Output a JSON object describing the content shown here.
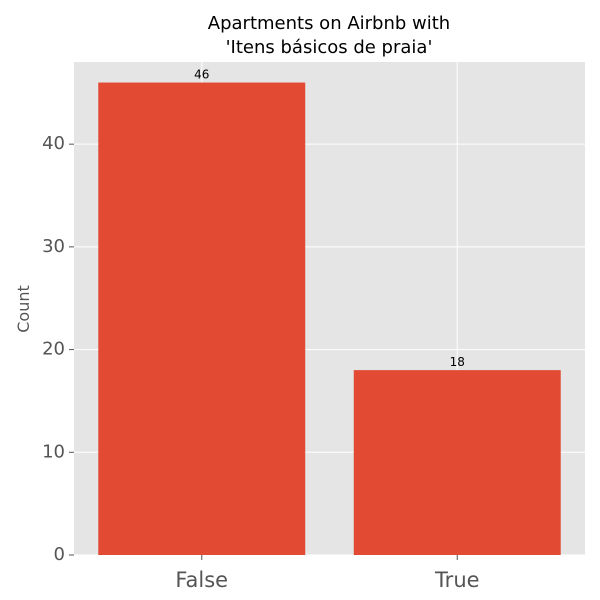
{
  "chart_data": {
    "type": "bar",
    "title": [
      "Apartments on Airbnb with",
      "'Itens básicos de praia'"
    ],
    "xlabel": "",
    "ylabel": "Count",
    "categories": [
      "False",
      "True"
    ],
    "values": [
      46,
      18
    ],
    "data_labels": [
      "46",
      "18"
    ],
    "ylim": [
      0,
      48
    ],
    "yticks": [
      0,
      10,
      20,
      30,
      40
    ],
    "ytick_labels": [
      "0",
      "10",
      "20",
      "30",
      "40"
    ],
    "grid": true,
    "legend": "none",
    "colors": {
      "bar": "#E24A33",
      "plot_background": "#E5E5E5",
      "grid": "#FFFFFF",
      "tick": "#555555"
    }
  }
}
